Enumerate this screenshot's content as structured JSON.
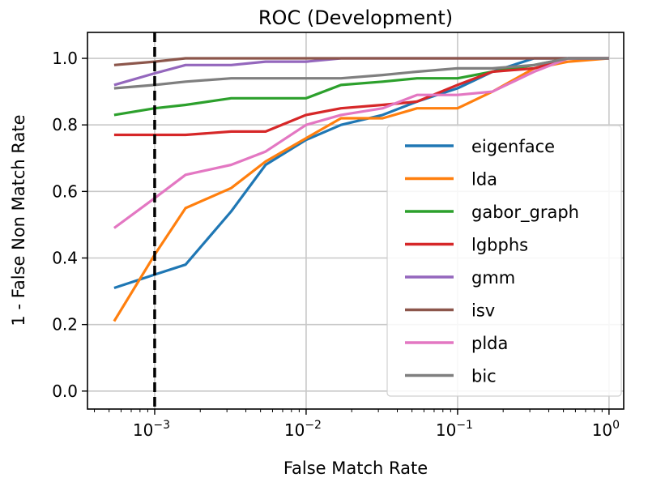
{
  "chart_data": {
    "type": "line",
    "title": "ROC (Development)",
    "xlabel": "False Match Rate",
    "ylabel": "1 - False Non Match Rate",
    "xscale": "log",
    "xlim": [
      0.00036,
      1.25
    ],
    "ylim": [
      -0.054,
      1.078
    ],
    "grid": true,
    "legend_placement": "lower-right",
    "xticks": [
      {
        "v": 0.001,
        "label": "10",
        "exp": "−3"
      },
      {
        "v": 0.01,
        "label": "10",
        "exp": "−2"
      },
      {
        "v": 0.1,
        "label": "10",
        "exp": "−1"
      },
      {
        "v": 1,
        "label": "10",
        "exp": "0"
      }
    ],
    "yticks": [
      {
        "v": 0,
        "label": "0.0"
      },
      {
        "v": 0.2,
        "label": "0.2"
      },
      {
        "v": 0.4,
        "label": "0.4"
      },
      {
        "v": 0.6,
        "label": "0.6"
      },
      {
        "v": 0.8,
        "label": "0.8"
      },
      {
        "v": 1.0,
        "label": "1.0"
      }
    ],
    "vline": {
      "x": 0.001,
      "style": "dashed",
      "color": "#000000"
    },
    "x": [
      0.00054,
      0.001,
      0.0016,
      0.0032,
      0.0054,
      0.01,
      0.017,
      0.032,
      0.054,
      0.1,
      0.17,
      0.32,
      0.54,
      1.0
    ],
    "series": [
      {
        "name": "eigenface",
        "color": "#1f77b4",
        "values": [
          0.31,
          0.35,
          0.38,
          0.54,
          0.68,
          0.755,
          0.8,
          0.83,
          0.87,
          0.91,
          0.96,
          1.0,
          1.0,
          1.0
        ]
      },
      {
        "name": "lda",
        "color": "#ff7f0e",
        "values": [
          0.21,
          0.41,
          0.55,
          0.61,
          0.69,
          0.76,
          0.82,
          0.82,
          0.85,
          0.85,
          0.9,
          0.97,
          0.99,
          1.0
        ]
      },
      {
        "name": "gabor_graph",
        "color": "#2ca02c",
        "values": [
          0.83,
          0.85,
          0.86,
          0.88,
          0.88,
          0.88,
          0.92,
          0.93,
          0.94,
          0.94,
          0.96,
          0.98,
          1.0,
          1.0
        ]
      },
      {
        "name": "lgbphs",
        "color": "#d62728",
        "values": [
          0.77,
          0.77,
          0.77,
          0.78,
          0.78,
          0.83,
          0.85,
          0.86,
          0.87,
          0.92,
          0.96,
          0.97,
          1.0,
          1.0
        ]
      },
      {
        "name": "gmm",
        "color": "#9467bd",
        "values": [
          0.92,
          0.955,
          0.98,
          0.98,
          0.99,
          0.99,
          1.0,
          1.0,
          1.0,
          1.0,
          1.0,
          1.0,
          1.0,
          1.0
        ]
      },
      {
        "name": "isv",
        "color": "#8c564b",
        "values": [
          0.98,
          0.99,
          1.0,
          1.0,
          1.0,
          1.0,
          1.0,
          1.0,
          1.0,
          1.0,
          1.0,
          1.0,
          1.0,
          1.0
        ]
      },
      {
        "name": "plda",
        "color": "#e377c2",
        "values": [
          0.49,
          0.58,
          0.65,
          0.68,
          0.72,
          0.8,
          0.83,
          0.85,
          0.89,
          0.89,
          0.9,
          0.96,
          1.0,
          1.0
        ]
      },
      {
        "name": "bic",
        "color": "#7f7f7f",
        "values": [
          0.91,
          0.92,
          0.93,
          0.94,
          0.94,
          0.94,
          0.94,
          0.95,
          0.96,
          0.97,
          0.97,
          0.98,
          1.0,
          1.0
        ]
      }
    ]
  }
}
